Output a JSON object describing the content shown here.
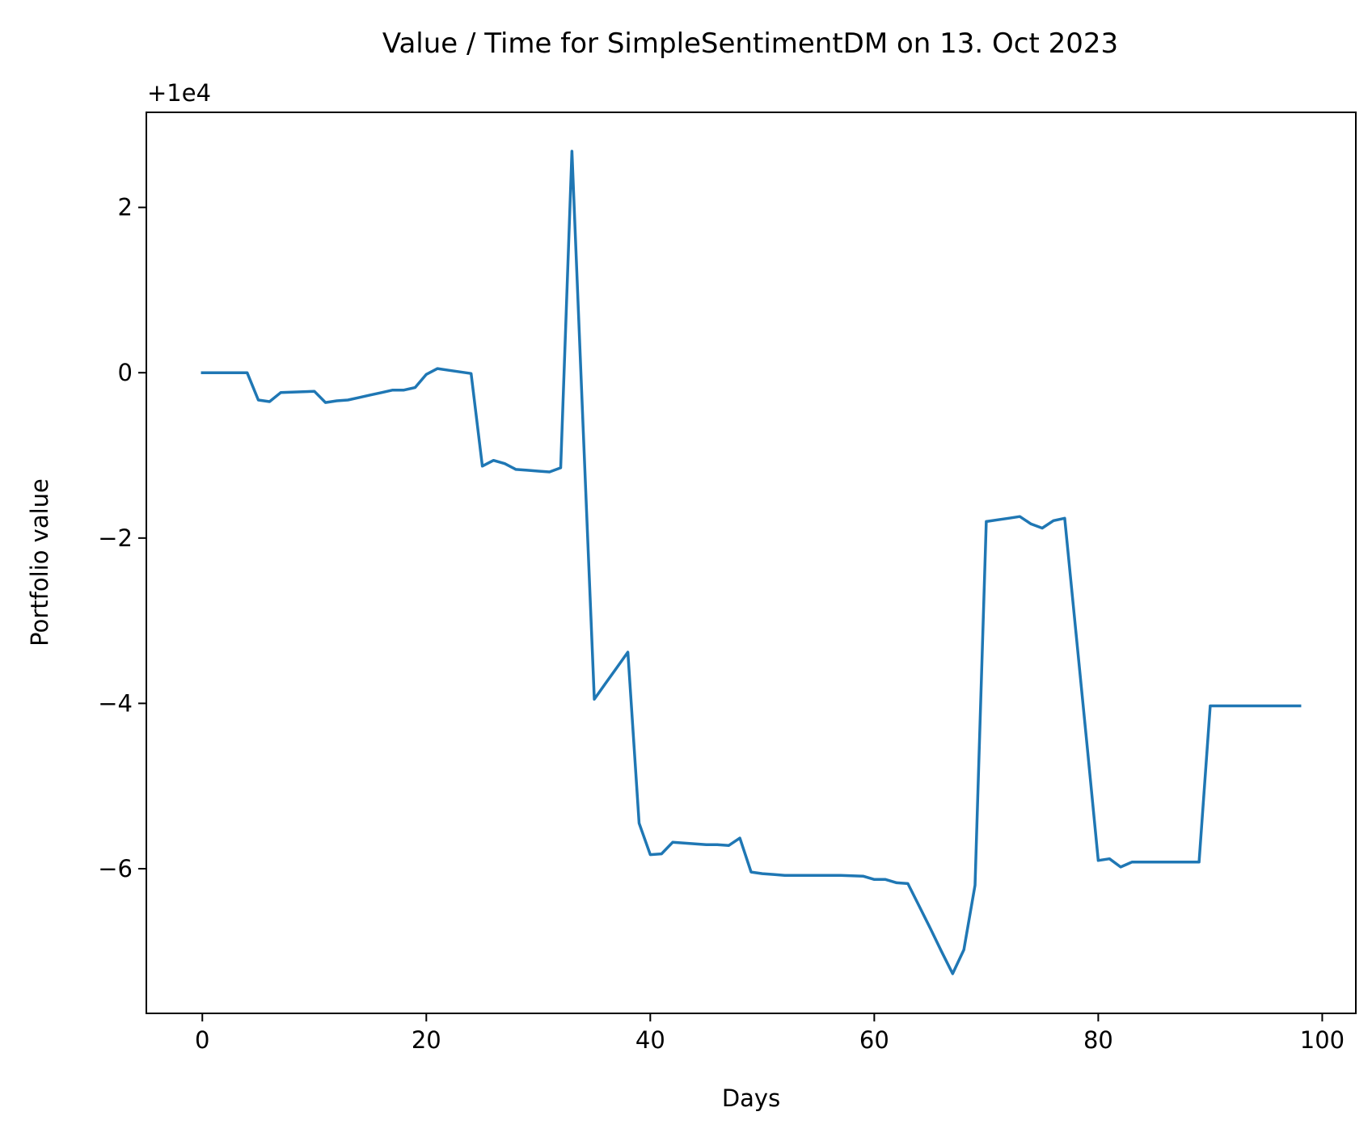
{
  "chart_data": {
    "type": "line",
    "title": "Value / Time for SimpleSentimentDM on 13. Oct 2023",
    "xlabel": "Days",
    "ylabel": "Portfolio value",
    "y_offset_label": "+1e4",
    "xlim": [
      -5,
      103
    ],
    "ylim": [
      -7.75,
      3.15
    ],
    "x_ticks": [
      0,
      20,
      40,
      60,
      80,
      100
    ],
    "x_tick_labels": [
      "0",
      "20",
      "40",
      "60",
      "80",
      "100"
    ],
    "y_ticks": [
      2,
      0,
      -2,
      -4,
      -6
    ],
    "y_tick_labels": [
      "2",
      "0",
      "−2",
      "−4",
      "−6"
    ],
    "grid": false,
    "line_color": "#1f77b4",
    "series": [
      {
        "x": [
          0,
          1,
          2,
          3,
          4,
          5,
          6,
          7,
          8,
          9,
          10,
          11,
          12,
          13,
          14,
          15,
          16,
          17,
          18,
          19,
          20,
          21,
          22,
          23,
          24,
          25,
          26,
          27,
          28,
          29,
          30,
          31,
          32,
          33,
          34,
          35,
          36,
          37,
          38,
          39,
          40,
          41,
          42,
          43,
          44,
          45,
          46,
          47,
          48,
          49,
          50,
          51,
          52,
          53,
          54,
          55,
          56,
          57,
          58,
          59,
          60,
          61,
          62,
          63,
          64,
          65,
          66,
          67,
          68,
          69,
          70,
          71,
          72,
          73,
          74,
          75,
          76,
          77,
          78,
          79,
          80,
          81,
          82,
          83,
          84,
          85,
          86,
          87,
          88,
          89,
          90,
          91,
          92,
          93,
          94,
          95,
          96,
          97,
          98
        ],
        "y": [
          0,
          0,
          0,
          0,
          0,
          -0.33,
          -0.35,
          -0.24,
          -0.235,
          -0.23,
          -0.225,
          -0.36,
          -0.34,
          -0.33,
          -0.3,
          -0.27,
          -0.24,
          -0.21,
          -0.21,
          -0.18,
          -0.02,
          0.05,
          0.03,
          0.01,
          -0.01,
          -1.13,
          -1.06,
          -1.1,
          -1.17,
          -1.18,
          -1.19,
          -1.2,
          -1.15,
          2.68,
          -0.65,
          -3.95,
          -3.76,
          -3.57,
          -3.38,
          -5.45,
          -5.83,
          -5.82,
          -5.68,
          -5.69,
          -5.7,
          -5.71,
          -5.71,
          -5.72,
          -5.63,
          -6.04,
          -6.06,
          -6.07,
          -6.08,
          -6.08,
          -6.08,
          -6.08,
          -6.08,
          -6.08,
          -6.085,
          -6.09,
          -6.13,
          -6.13,
          -6.17,
          -6.18,
          -6.45,
          -6.72,
          -7,
          -7.27,
          -6.98,
          -6.2,
          -1.8,
          -1.78,
          -1.76,
          -1.74,
          -1.83,
          -1.88,
          -1.79,
          -1.76,
          -3.13,
          -4.51,
          -5.9,
          -5.88,
          -5.98,
          -5.92,
          -5.92,
          -5.92,
          -5.92,
          -5.92,
          -5.92,
          -5.92,
          -4.03,
          -4.03,
          -4.03,
          -4.03,
          -4.03,
          -4.03,
          -4.03,
          -4.03,
          -4.03
        ]
      }
    ]
  }
}
